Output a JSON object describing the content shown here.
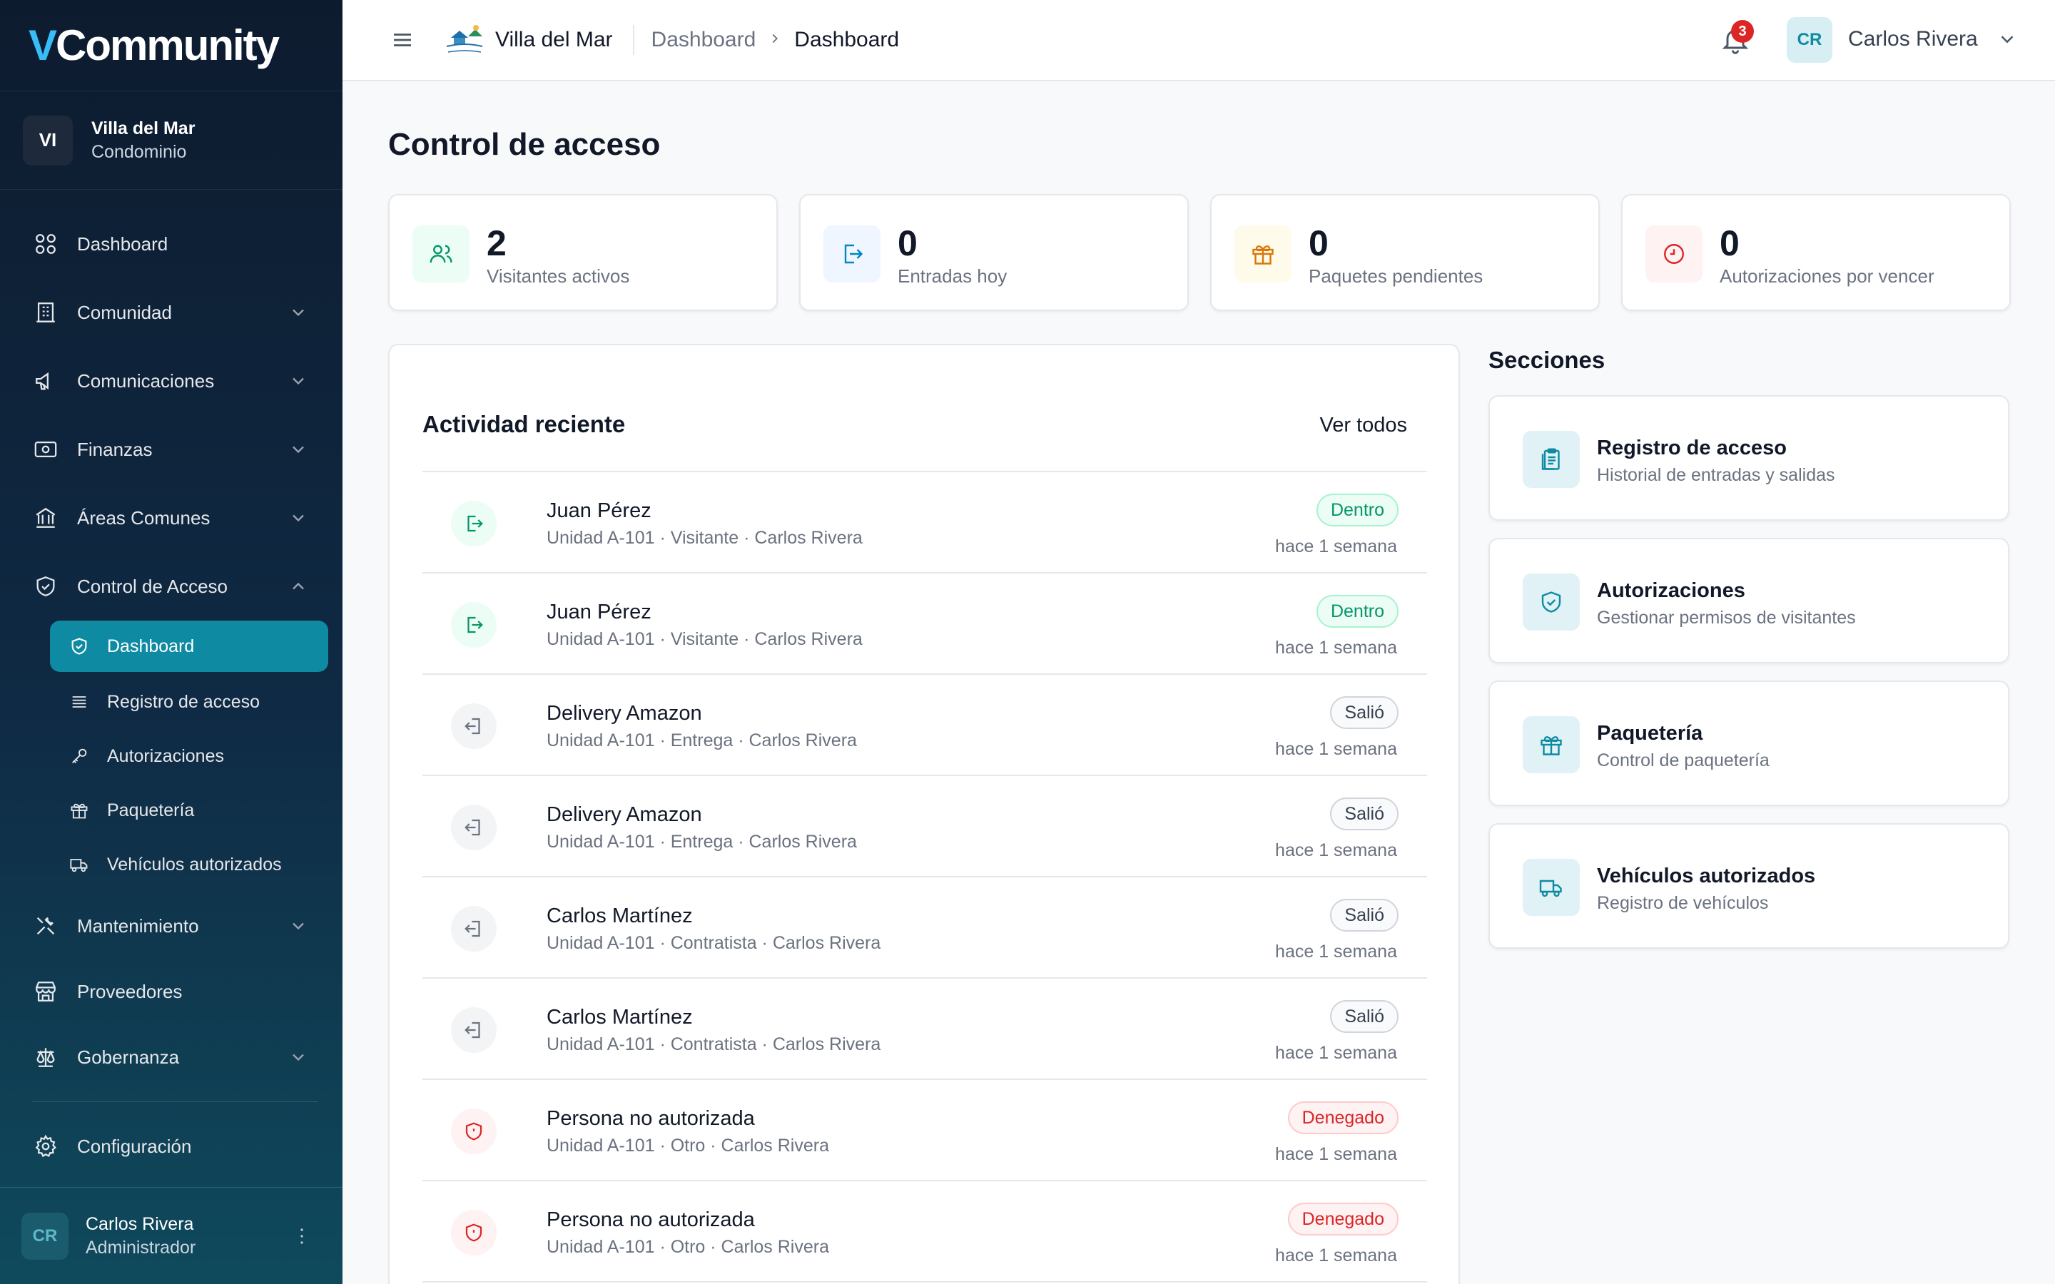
{
  "app": {
    "logo_v": "V",
    "logo_rest": "Community"
  },
  "org": {
    "initials": "VI",
    "name": "Villa del Mar",
    "type": "Condominio"
  },
  "nav": {
    "dashboard": "Dashboard",
    "comunidad": "Comunidad",
    "comunicaciones": "Comunicaciones",
    "finanzas": "Finanzas",
    "areas": "Áreas Comunes",
    "control": "Control de Acceso",
    "sub": {
      "dashboard": "Dashboard",
      "registro": "Registro de acceso",
      "autorizaciones": "Autorizaciones",
      "paqueteria": "Paquetería",
      "vehiculos": "Vehículos autorizados"
    },
    "mantenimiento": "Mantenimiento",
    "proveedores": "Proveedores",
    "gobernanza": "Gobernanza",
    "configuracion": "Configuración"
  },
  "sidebar_user": {
    "initials": "CR",
    "name": "Carlos Rivera",
    "role": "Administrador"
  },
  "header": {
    "brand": "Villa del Mar",
    "crumb1": "Dashboard",
    "crumb2": "Dashboard",
    "notifications": "3",
    "user_initials": "CR",
    "user_name": "Carlos Rivera"
  },
  "page": {
    "title": "Control de acceso"
  },
  "stats": [
    {
      "value": "2",
      "label": "Visitantes activos",
      "icon": "users-icon",
      "color": "#059669"
    },
    {
      "value": "0",
      "label": "Entradas hoy",
      "icon": "login-icon",
      "color": "#0284c7"
    },
    {
      "value": "0",
      "label": "Paquetes pendientes",
      "icon": "gift-icon",
      "color": "#d97706"
    },
    {
      "value": "0",
      "label": "Autorizaciones por vencer",
      "icon": "clock-icon",
      "color": "#dc2626"
    }
  ],
  "activity": {
    "title": "Actividad reciente",
    "view_all": "Ver todos",
    "rows": [
      {
        "name": "Juan Pérez",
        "detail": "Unidad A-101 · Visitante · Carlos Rivera",
        "status": "Dentro",
        "time": "hace 1 semana"
      },
      {
        "name": "Juan Pérez",
        "detail": "Unidad A-101 · Visitante · Carlos Rivera",
        "status": "Dentro",
        "time": "hace 1 semana"
      },
      {
        "name": "Delivery Amazon",
        "detail": "Unidad A-101 · Entrega · Carlos Rivera",
        "status": "Salió",
        "time": "hace 1 semana"
      },
      {
        "name": "Delivery Amazon",
        "detail": "Unidad A-101 · Entrega · Carlos Rivera",
        "status": "Salió",
        "time": "hace 1 semana"
      },
      {
        "name": "Carlos Martínez",
        "detail": "Unidad A-101 · Contratista · Carlos Rivera",
        "status": "Salió",
        "time": "hace 1 semana"
      },
      {
        "name": "Carlos Martínez",
        "detail": "Unidad A-101 · Contratista · Carlos Rivera",
        "status": "Salió",
        "time": "hace 1 semana"
      },
      {
        "name": "Persona no autorizada",
        "detail": "Unidad A-101 · Otro · Carlos Rivera",
        "status": "Denegado",
        "time": "hace 1 semana"
      },
      {
        "name": "Persona no autorizada",
        "detail": "Unidad A-101 · Otro · Carlos Rivera",
        "status": "Denegado",
        "time": "hace 1 semana"
      }
    ]
  },
  "sections": {
    "title": "Secciones",
    "items": [
      {
        "name": "Registro de acceso",
        "desc": "Historial de entradas y salidas",
        "icon": "clipboard-icon"
      },
      {
        "name": "Autorizaciones",
        "desc": "Gestionar permisos de visitantes",
        "icon": "shield-check-icon"
      },
      {
        "name": "Paquetería",
        "desc": "Control de paquetería",
        "icon": "gift-icon"
      },
      {
        "name": "Vehículos autorizados",
        "desc": "Registro de vehículos",
        "icon": "truck-icon"
      }
    ]
  },
  "colors": {
    "accent": "#0e8ba3",
    "success": "#059669",
    "danger": "#dc2626"
  }
}
